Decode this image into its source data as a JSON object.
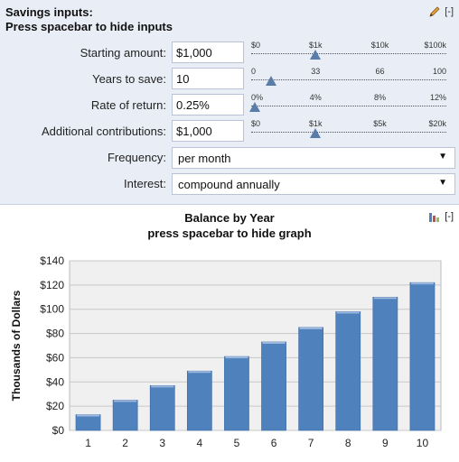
{
  "inputs": {
    "title_line1": "Savings inputs:",
    "title_line2": "Press spacebar to hide inputs",
    "collapse_label": "[-]",
    "starting_amount": {
      "label": "Starting amount:",
      "value": "$1,000",
      "ticks": [
        "$0",
        "$1k",
        "$10k",
        "$100k"
      ],
      "position": 0.33
    },
    "years_to_save": {
      "label": "Years to save:",
      "value": "10",
      "ticks": [
        "0",
        "33",
        "66",
        "100"
      ],
      "position": 0.1
    },
    "rate_of_return": {
      "label": "Rate of return:",
      "value": "0.25%",
      "ticks": [
        "0%",
        "4%",
        "8%",
        "12%"
      ],
      "position": 0.02
    },
    "additional_contributions": {
      "label": "Additional contributions:",
      "value": "$1,000",
      "ticks": [
        "$0",
        "$1k",
        "$5k",
        "$20k"
      ],
      "position": 0.33
    },
    "frequency": {
      "label": "Frequency:",
      "value": "per month"
    },
    "interest": {
      "label": "Interest:",
      "value": "compound annually"
    }
  },
  "chart_section": {
    "title_line1": "Balance by Year",
    "title_line2": "press spacebar to hide graph",
    "collapse_label": "[-]"
  },
  "chart_data": {
    "type": "bar",
    "title": "",
    "xlabel": "",
    "ylabel": "Thousands of Dollars",
    "categories": [
      "1",
      "2",
      "3",
      "4",
      "5",
      "6",
      "7",
      "8",
      "9",
      "10"
    ],
    "values": [
      13,
      25,
      37,
      49,
      61,
      73,
      85,
      98,
      110,
      122
    ],
    "ylim": [
      0,
      140
    ],
    "yticks": [
      "$0",
      "$20",
      "$40",
      "$60",
      "$80",
      "$100",
      "$120",
      "$140"
    ],
    "grid": true,
    "bar_color": "#4f81bd",
    "plot_background": "#f0f0f0"
  }
}
